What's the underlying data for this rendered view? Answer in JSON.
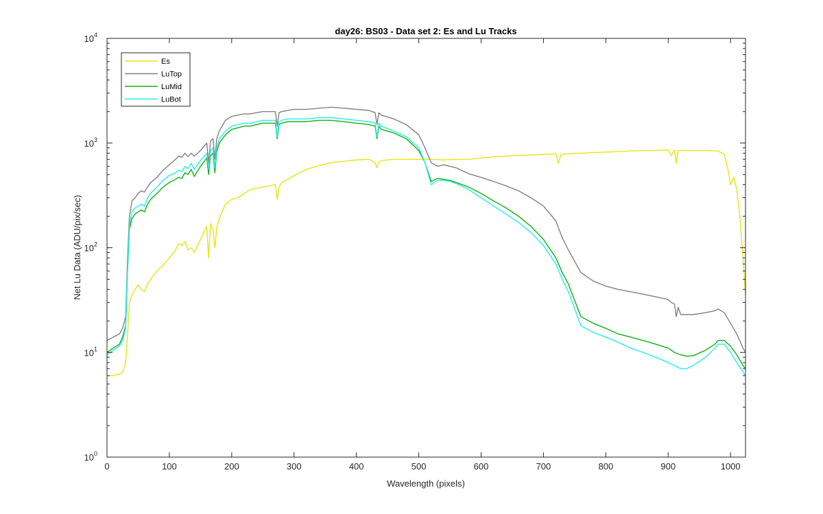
{
  "chart_data": {
    "type": "line",
    "title": "day26: BS03 - Data set 2: Es and Lu Tracks",
    "xlabel": "Wavelength (pixels)",
    "ylabel": "Net Lu Data (ADU/pix/sec)",
    "xlim": [
      0,
      1024
    ],
    "ylim": [
      1,
      10000
    ],
    "yscale": "log",
    "grid": false,
    "legend_position": "top-left",
    "x_ticks": [
      0,
      100,
      200,
      300,
      400,
      500,
      600,
      700,
      800,
      900,
      1000
    ],
    "x_tick_labels": [
      "0",
      "100",
      "200",
      "300",
      "400",
      "500",
      "600",
      "700",
      "800",
      "900",
      "1000"
    ],
    "y_ticks": [
      1,
      10,
      100,
      1000,
      10000
    ],
    "y_tick_bases": [
      "10",
      "10",
      "10",
      "10",
      "10"
    ],
    "y_tick_exponents": [
      "0",
      "1",
      "2",
      "3",
      "4"
    ],
    "series": [
      {
        "name": "Es",
        "color": "#e5e512",
        "x": [
          0,
          10,
          20,
          25,
          30,
          33,
          36,
          40,
          45,
          50,
          55,
          60,
          65,
          70,
          75,
          80,
          90,
          100,
          110,
          115,
          120,
          125,
          130,
          135,
          140,
          150,
          160,
          163,
          166,
          170,
          173,
          176,
          180,
          190,
          200,
          210,
          220,
          230,
          240,
          250,
          260,
          270,
          273,
          276,
          280,
          290,
          300,
          320,
          340,
          360,
          380,
          400,
          420,
          430,
          433,
          436,
          440,
          460,
          480,
          500,
          520,
          540,
          560,
          580,
          600,
          620,
          640,
          660,
          680,
          700,
          720,
          724,
          728,
          740,
          760,
          780,
          800,
          820,
          840,
          860,
          880,
          900,
          905,
          910,
          913,
          916,
          920,
          940,
          960,
          980,
          990,
          995,
          1000,
          1005,
          1010,
          1015,
          1020,
          1024
        ],
        "y": [
          6,
          6,
          6.2,
          6.5,
          8,
          15,
          30,
          35,
          40,
          44,
          40,
          38,
          45,
          50,
          55,
          60,
          68,
          80,
          95,
          110,
          105,
          115,
          95,
          100,
          90,
          120,
          160,
          80,
          170,
          150,
          100,
          155,
          190,
          260,
          290,
          300,
          330,
          360,
          370,
          380,
          390,
          400,
          290,
          380,
          420,
          450,
          490,
          560,
          610,
          650,
          670,
          690,
          700,
          650,
          580,
          660,
          680,
          700,
          700,
          700,
          700,
          690,
          700,
          700,
          720,
          740,
          750,
          760,
          770,
          780,
          790,
          640,
          780,
          790,
          800,
          810,
          820,
          830,
          840,
          850,
          850,
          860,
          760,
          860,
          640,
          850,
          850,
          850,
          850,
          840,
          780,
          600,
          400,
          470,
          360,
          200,
          80,
          35
        ]
      },
      {
        "name": "LuTop",
        "color": "#808080",
        "x": [
          0,
          10,
          20,
          25,
          30,
          33,
          36,
          40,
          45,
          50,
          55,
          60,
          65,
          70,
          80,
          90,
          100,
          110,
          115,
          120,
          125,
          130,
          135,
          140,
          150,
          160,
          163,
          166,
          170,
          173,
          176,
          180,
          190,
          200,
          210,
          220,
          230,
          240,
          250,
          260,
          270,
          273,
          276,
          280,
          290,
          300,
          320,
          340,
          360,
          380,
          400,
          420,
          430,
          433,
          436,
          440,
          460,
          480,
          500,
          510,
          520,
          530,
          540,
          550,
          560,
          580,
          600,
          620,
          640,
          660,
          680,
          700,
          720,
          730,
          740,
          760,
          780,
          800,
          820,
          840,
          860,
          880,
          900,
          905,
          910,
          913,
          916,
          920,
          940,
          960,
          975,
          980,
          990,
          1000,
          1010,
          1020,
          1024
        ],
        "y": [
          13,
          14,
          15,
          17,
          22,
          80,
          200,
          280,
          300,
          330,
          350,
          340,
          380,
          420,
          470,
          550,
          620,
          700,
          750,
          730,
          800,
          740,
          800,
          750,
          850,
          1000,
          640,
          1050,
          1100,
          700,
          1100,
          1300,
          1650,
          1800,
          1850,
          1900,
          1900,
          1950,
          2000,
          2000,
          2000,
          1450,
          1950,
          2000,
          2050,
          2100,
          2100,
          2150,
          2200,
          2150,
          2100,
          2050,
          1950,
          1500,
          1950,
          1850,
          1700,
          1500,
          1200,
          900,
          650,
          600,
          620,
          600,
          580,
          510,
          470,
          430,
          390,
          350,
          300,
          250,
          180,
          125,
          95,
          58,
          48,
          43,
          40,
          38,
          36,
          34,
          32,
          30,
          29,
          22,
          27,
          23,
          23,
          24,
          25,
          26,
          24,
          19,
          15,
          11,
          10
        ]
      },
      {
        "name": "LuMid",
        "color": "#10b010",
        "x": [
          0,
          10,
          20,
          25,
          30,
          33,
          36,
          40,
          45,
          50,
          55,
          60,
          65,
          70,
          80,
          90,
          100,
          110,
          115,
          120,
          125,
          130,
          135,
          140,
          150,
          160,
          163,
          166,
          170,
          173,
          176,
          180,
          190,
          200,
          210,
          220,
          230,
          240,
          250,
          260,
          270,
          273,
          276,
          280,
          290,
          300,
          320,
          340,
          360,
          380,
          400,
          420,
          430,
          433,
          436,
          440,
          460,
          480,
          500,
          510,
          520,
          530,
          540,
          550,
          560,
          580,
          600,
          620,
          640,
          660,
          680,
          700,
          720,
          730,
          740,
          760,
          780,
          800,
          820,
          840,
          860,
          880,
          900,
          910,
          920,
          930,
          940,
          960,
          975,
          980,
          990,
          1000,
          1010,
          1020,
          1024
        ],
        "y": [
          10,
          11,
          12,
          14,
          18,
          60,
          150,
          190,
          210,
          220,
          230,
          220,
          260,
          290,
          330,
          380,
          420,
          450,
          470,
          460,
          520,
          500,
          560,
          480,
          600,
          720,
          500,
          760,
          800,
          520,
          820,
          1000,
          1200,
          1350,
          1400,
          1450,
          1450,
          1500,
          1550,
          1550,
          1550,
          1100,
          1500,
          1550,
          1600,
          1600,
          1600,
          1650,
          1650,
          1600,
          1550,
          1500,
          1450,
          1100,
          1450,
          1350,
          1250,
          1100,
          850,
          650,
          430,
          460,
          450,
          440,
          420,
          380,
          330,
          280,
          240,
          200,
          160,
          120,
          80,
          58,
          45,
          22,
          19,
          17,
          15,
          14,
          13,
          12,
          11,
          10,
          9.5,
          9.2,
          9.3,
          10.5,
          12,
          13,
          13,
          11.5,
          9.5,
          7.5,
          7
        ]
      },
      {
        "name": "LuBot",
        "color": "#22eeee",
        "x": [
          0,
          10,
          20,
          25,
          30,
          33,
          36,
          40,
          45,
          50,
          55,
          60,
          65,
          70,
          80,
          90,
          100,
          110,
          115,
          120,
          125,
          130,
          135,
          140,
          150,
          160,
          163,
          166,
          170,
          173,
          176,
          180,
          190,
          200,
          210,
          220,
          230,
          240,
          250,
          260,
          270,
          273,
          276,
          280,
          290,
          300,
          320,
          340,
          360,
          380,
          400,
          420,
          430,
          433,
          436,
          440,
          460,
          480,
          500,
          510,
          520,
          530,
          540,
          550,
          560,
          580,
          600,
          620,
          640,
          660,
          680,
          700,
          720,
          730,
          740,
          760,
          780,
          800,
          820,
          840,
          860,
          880,
          900,
          910,
          920,
          930,
          940,
          960,
          975,
          980,
          990,
          1000,
          1010,
          1020,
          1024
        ],
        "y": [
          9.5,
          10.5,
          11.5,
          13,
          17,
          65,
          160,
          220,
          240,
          250,
          260,
          250,
          300,
          330,
          380,
          440,
          490,
          520,
          550,
          530,
          600,
          570,
          640,
          560,
          680,
          800,
          560,
          850,
          900,
          580,
          900,
          1100,
          1300,
          1450,
          1500,
          1550,
          1550,
          1600,
          1650,
          1650,
          1650,
          1150,
          1600,
          1650,
          1700,
          1700,
          1700,
          1750,
          1750,
          1700,
          1650,
          1600,
          1550,
          1150,
          1550,
          1450,
          1300,
          1150,
          900,
          650,
          400,
          440,
          440,
          430,
          410,
          360,
          300,
          250,
          210,
          175,
          140,
          105,
          70,
          50,
          38,
          18,
          15.5,
          14,
          12.5,
          11,
          10,
          9,
          8,
          7.5,
          7,
          7,
          7.5,
          9,
          11,
          12,
          12,
          10,
          8,
          6.5,
          6
        ]
      }
    ]
  }
}
